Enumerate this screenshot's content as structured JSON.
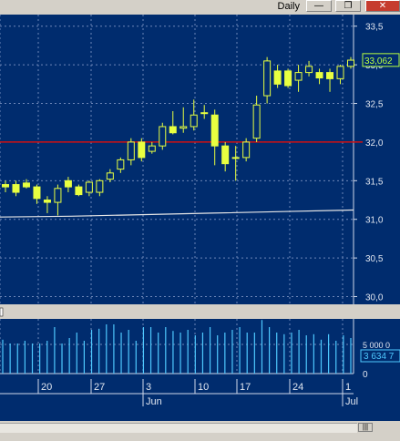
{
  "window": {
    "title": "Daily",
    "minimize_glyph": "—",
    "restore_glyph": "❐",
    "close_glyph": "✕"
  },
  "colors": {
    "background": "#002c6e",
    "up_candle": "#e8ff40",
    "grid": "#6d86b8",
    "reference_line": "#d01010",
    "moving_average": "#e6e6e6",
    "volume": "#4ec9ff",
    "last_price_box": "#b8ff40"
  },
  "chart_data": [
    {
      "type": "candlestick",
      "title": "",
      "y_ticks": [
        "33,5",
        "33,0",
        "32,5",
        "32,0",
        "31,5",
        "31,0",
        "30,5",
        "30,0"
      ],
      "ylim": [
        29.9,
        33.65
      ],
      "last_price_label": "33,062",
      "reference_level": 32.0,
      "moving_average": [
        31.03,
        31.04,
        31.06,
        31.08,
        31.1,
        31.12
      ],
      "candles": [
        {
          "o": 31.45,
          "h": 31.5,
          "l": 31.35,
          "c": 31.42
        },
        {
          "o": 31.45,
          "h": 31.5,
          "l": 31.3,
          "c": 31.35
        },
        {
          "o": 31.47,
          "h": 31.52,
          "l": 31.4,
          "c": 31.42
        },
        {
          "o": 31.42,
          "h": 31.45,
          "l": 31.2,
          "c": 31.27
        },
        {
          "o": 31.25,
          "h": 31.3,
          "l": 31.08,
          "c": 31.22
        },
        {
          "o": 31.22,
          "h": 31.45,
          "l": 31.05,
          "c": 31.4
        },
        {
          "o": 31.5,
          "h": 31.55,
          "l": 31.35,
          "c": 31.42
        },
        {
          "o": 31.42,
          "h": 31.45,
          "l": 31.3,
          "c": 31.32
        },
        {
          "o": 31.35,
          "h": 31.5,
          "l": 31.3,
          "c": 31.48
        },
        {
          "o": 31.35,
          "h": 31.52,
          "l": 31.3,
          "c": 31.5
        },
        {
          "o": 31.52,
          "h": 31.65,
          "l": 31.48,
          "c": 31.6
        },
        {
          "o": 31.65,
          "h": 31.8,
          "l": 31.6,
          "c": 31.77
        },
        {
          "o": 31.77,
          "h": 32.05,
          "l": 31.7,
          "c": 32.0
        },
        {
          "o": 32.0,
          "h": 32.05,
          "l": 31.75,
          "c": 31.8
        },
        {
          "o": 31.88,
          "h": 32.0,
          "l": 31.85,
          "c": 31.95
        },
        {
          "o": 31.95,
          "h": 32.25,
          "l": 31.9,
          "c": 32.2
        },
        {
          "o": 32.2,
          "h": 32.4,
          "l": 32.1,
          "c": 32.12
        },
        {
          "o": 32.18,
          "h": 32.45,
          "l": 32.12,
          "c": 32.2
        },
        {
          "o": 32.2,
          "h": 32.55,
          "l": 32.15,
          "c": 32.35
        },
        {
          "o": 32.38,
          "h": 32.48,
          "l": 32.3,
          "c": 32.38
        },
        {
          "o": 32.35,
          "h": 32.42,
          "l": 31.7,
          "c": 31.95
        },
        {
          "o": 31.95,
          "h": 32.0,
          "l": 31.62,
          "c": 31.72
        },
        {
          "o": 31.8,
          "h": 31.95,
          "l": 31.5,
          "c": 31.8
        },
        {
          "o": 31.8,
          "h": 32.05,
          "l": 31.75,
          "c": 32.0
        },
        {
          "o": 32.05,
          "h": 32.6,
          "l": 32.0,
          "c": 32.48
        },
        {
          "o": 32.6,
          "h": 33.1,
          "l": 32.5,
          "c": 33.05
        },
        {
          "o": 32.92,
          "h": 33.0,
          "l": 32.7,
          "c": 32.75
        },
        {
          "o": 32.92,
          "h": 32.95,
          "l": 32.7,
          "c": 32.73
        },
        {
          "o": 32.8,
          "h": 33.0,
          "l": 32.65,
          "c": 32.9
        },
        {
          "o": 32.9,
          "h": 33.05,
          "l": 32.85,
          "c": 32.98
        },
        {
          "o": 32.9,
          "h": 32.95,
          "l": 32.75,
          "c": 32.83
        },
        {
          "o": 32.9,
          "h": 32.95,
          "l": 32.65,
          "c": 32.82
        },
        {
          "o": 32.82,
          "h": 33.0,
          "l": 32.75,
          "c": 32.98
        },
        {
          "o": 32.98,
          "h": 33.1,
          "l": 32.95,
          "c": 33.06
        }
      ],
      "x_ticks": [
        "20",
        "27",
        "3",
        "10",
        "17",
        "24",
        "1"
      ],
      "month_labels": [
        "Jun",
        "Jul"
      ]
    },
    {
      "type": "bar",
      "title": "",
      "y_labels": [
        "5 000 0",
        "0"
      ],
      "last_value_label": "3 634 7",
      "values": [
        0.62,
        0.55,
        0.55,
        0.6,
        0.55,
        0.55,
        0.6,
        0.85,
        0.55,
        0.65,
        0.75,
        0.6,
        0.8,
        0.82,
        0.9,
        0.9,
        0.75,
        0.8,
        0.6,
        0.85,
        0.85,
        0.75,
        0.85,
        0.78,
        0.75,
        0.8,
        0.7,
        0.75,
        0.85,
        0.7,
        0.75,
        0.8,
        0.85,
        0.75,
        0.75,
        0.98,
        0.85,
        0.75,
        0.72,
        0.75,
        0.8,
        0.7,
        0.72,
        0.62,
        0.72,
        0.6,
        0.7,
        0.65
      ]
    }
  ]
}
